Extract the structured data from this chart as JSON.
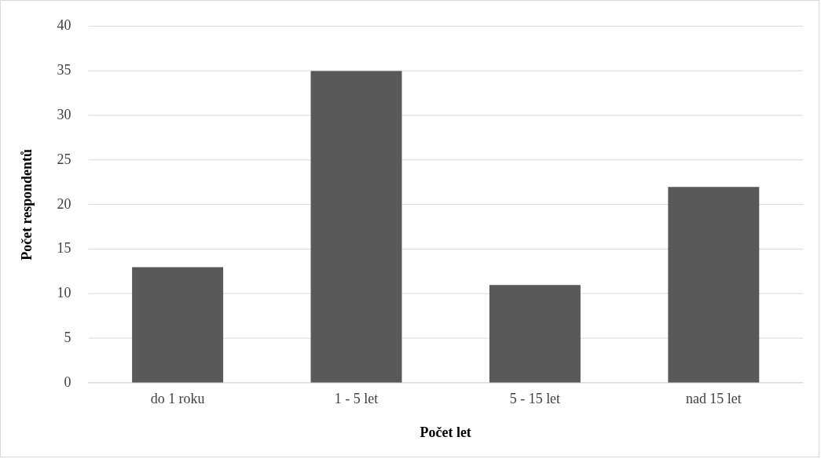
{
  "chart_data": {
    "type": "bar",
    "xlabel": "Počet let",
    "ylabel": "Počet respondentů",
    "categories": [
      "do 1 roku",
      "1 - 5 let",
      "5 - 15 let",
      "nad 15 let"
    ],
    "values": [
      13,
      35,
      11,
      22
    ],
    "color": "#595959",
    "ylim": [
      0,
      40
    ],
    "yticks": [
      0,
      5,
      10,
      15,
      20,
      25,
      30,
      35,
      40
    ],
    "grid": "y"
  }
}
